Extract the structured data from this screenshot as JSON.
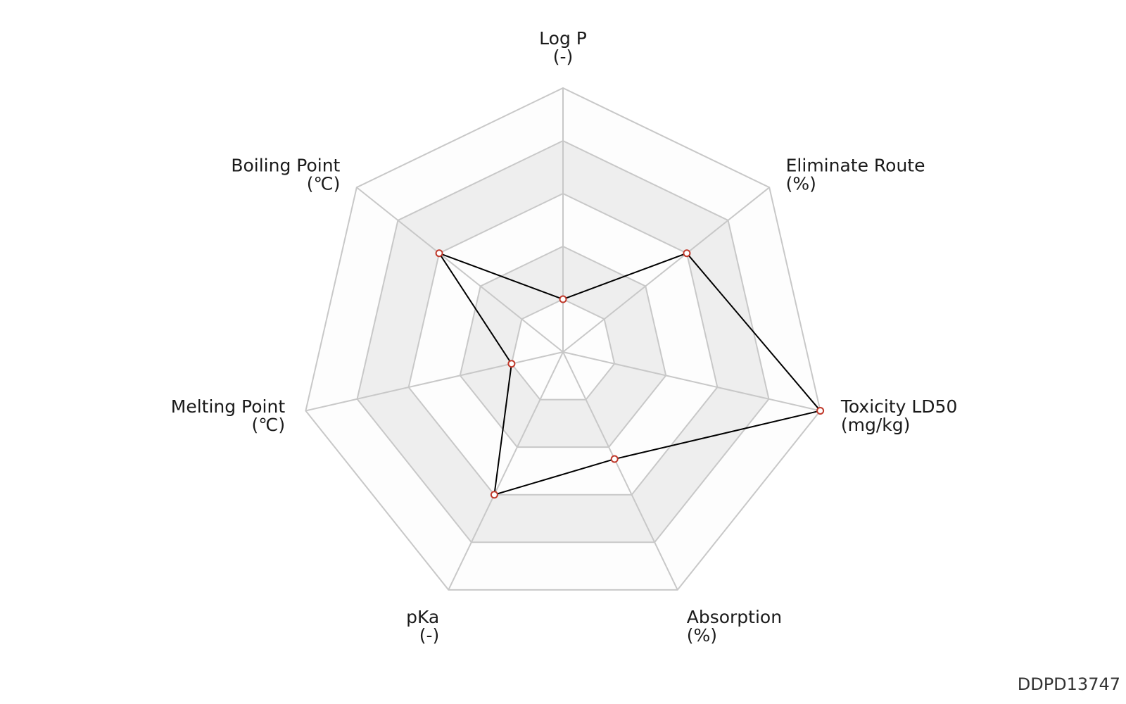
{
  "chart_data": {
    "type": "radar",
    "title": "",
    "axes": [
      {
        "name": "Log P",
        "unit": "(-)"
      },
      {
        "name": "Eliminate Route",
        "unit": "(%)"
      },
      {
        "name": "Toxicity LD50",
        "unit": "(mg/kg)"
      },
      {
        "name": "Absorption",
        "unit": "(%)"
      },
      {
        "name": "pKa",
        "unit": "(-)"
      },
      {
        "name": "Melting Point",
        "unit": "(℃)"
      },
      {
        "name": "Boiling Point",
        "unit": "(℃)"
      }
    ],
    "rings": 5,
    "range": [
      0,
      1
    ],
    "series": [
      {
        "values": [
          0.2,
          0.6,
          1.0,
          0.45,
          0.6,
          0.2,
          0.6
        ]
      }
    ],
    "colors": {
      "series_line": "#000000",
      "marker_stroke": "#c0392b",
      "marker_fill": "#ffffff",
      "grid_line": "#c8c8c8",
      "band_fill": "#eeeeee",
      "band_fill_alt": "#fdfdfd"
    }
  },
  "watermark": "DDPD13747"
}
